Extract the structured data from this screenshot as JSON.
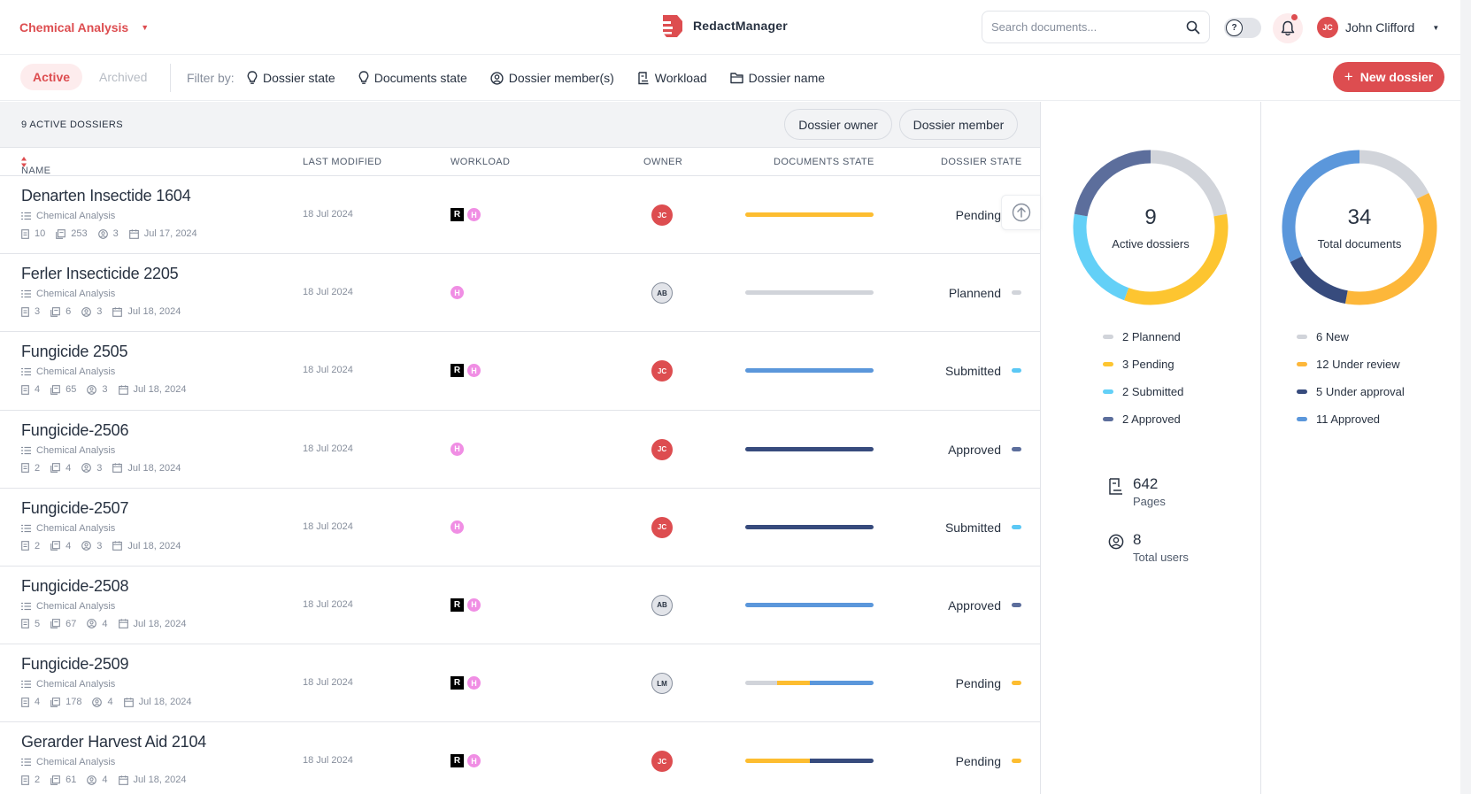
{
  "header": {
    "project": "Chemical Analysis",
    "app_name": "RedactManager",
    "search_placeholder": "Search documents...",
    "help_glyph": "?",
    "user": {
      "initials": "JC",
      "name": "John Clifford"
    }
  },
  "filterbar": {
    "tab_active": "Active",
    "tab_archived": "Archived",
    "filter_label": "Filter by:",
    "filters": [
      {
        "label": "Dossier state",
        "icon": "lightbulb-icon"
      },
      {
        "label": "Documents state",
        "icon": "lightbulb-icon"
      },
      {
        "label": "Dossier member(s)",
        "icon": "user-circle-icon"
      },
      {
        "label": "Workload",
        "icon": "workload-icon"
      },
      {
        "label": "Dossier name",
        "icon": "folder-icon"
      }
    ],
    "new_button": "New dossier"
  },
  "list": {
    "count_label": "9 ACTIVE DOSSIERS",
    "toggle_owner": "Dossier owner",
    "toggle_member": "Dossier member",
    "columns": {
      "name": "NAME",
      "modified": "LAST MODIFIED",
      "workload": "WORKLOAD",
      "owner": "OWNER",
      "docs_state": "DOCUMENTS STATE",
      "dossier_state": "DOSSIER STATE"
    }
  },
  "colors": {
    "accent": "#dd4d50",
    "new": "#d1d4da",
    "under_review": "#fdbd30",
    "under_approval": "#374b7d",
    "approved_docs": "#5b97db",
    "plannend": "#d1d4da",
    "pending": "#fdbd30",
    "submitted": "#5bc8f5",
    "approved": "#5c6e9c"
  },
  "dossiers": [
    {
      "name": "Denarten Insectide 1604",
      "template": "Chemical Analysis",
      "docs": "10",
      "pages": "253",
      "members": "3",
      "date": "Jul 17, 2024",
      "modified": "18 Jul 2024",
      "workload": [
        "R",
        "H"
      ],
      "owner": "JC",
      "owner_style": "jc",
      "state": "Pending",
      "state_color": "#fdbd30",
      "bar": [
        {
          "color": "#fdbd30",
          "pct": 100
        }
      ]
    },
    {
      "name": "Ferler Insecticide 2205",
      "template": "Chemical Analysis",
      "docs": "3",
      "pages": "6",
      "members": "3",
      "date": "Jul 18, 2024",
      "modified": "18 Jul 2024",
      "workload": [
        "H"
      ],
      "owner": "AB",
      "owner_style": "gray",
      "state": "Plannend",
      "state_color": "#d1d4da",
      "bar": [
        {
          "color": "#d1d4da",
          "pct": 100
        }
      ]
    },
    {
      "name": "Fungicide 2505",
      "template": "Chemical Analysis",
      "docs": "4",
      "pages": "65",
      "members": "3",
      "date": "Jul 18, 2024",
      "modified": "18 Jul 2024",
      "workload": [
        "R",
        "H"
      ],
      "owner": "JC",
      "owner_style": "jc",
      "state": "Submitted",
      "state_color": "#5bc8f5",
      "bar": [
        {
          "color": "#5b97db",
          "pct": 100
        }
      ]
    },
    {
      "name": "Fungicide-2506",
      "template": "Chemical Analysis",
      "docs": "2",
      "pages": "4",
      "members": "3",
      "date": "Jul 18, 2024",
      "modified": "18 Jul 2024",
      "workload": [
        "H"
      ],
      "owner": "JC",
      "owner_style": "jc",
      "state": "Approved",
      "state_color": "#5c6e9c",
      "bar": [
        {
          "color": "#374b7d",
          "pct": 100
        }
      ]
    },
    {
      "name": "Fungicide-2507",
      "template": "Chemical Analysis",
      "docs": "2",
      "pages": "4",
      "members": "3",
      "date": "Jul 18, 2024",
      "modified": "18 Jul 2024",
      "workload": [
        "H"
      ],
      "owner": "JC",
      "owner_style": "jc",
      "state": "Submitted",
      "state_color": "#5bc8f5",
      "bar": [
        {
          "color": "#374b7d",
          "pct": 100
        }
      ]
    },
    {
      "name": "Fungicide-2508",
      "template": "Chemical Analysis",
      "docs": "5",
      "pages": "67",
      "members": "4",
      "date": "Jul 18, 2024",
      "modified": "18 Jul 2024",
      "workload": [
        "R",
        "H"
      ],
      "owner": "AB",
      "owner_style": "gray",
      "state": "Approved",
      "state_color": "#5c6e9c",
      "bar": [
        {
          "color": "#5b97db",
          "pct": 100
        }
      ]
    },
    {
      "name": "Fungicide-2509",
      "template": "Chemical Analysis",
      "docs": "4",
      "pages": "178",
      "members": "4",
      "date": "Jul 18, 2024",
      "modified": "18 Jul 2024",
      "workload": [
        "R",
        "H"
      ],
      "owner": "LM",
      "owner_style": "gray",
      "state": "Pending",
      "state_color": "#fdbd30",
      "bar": [
        {
          "color": "#d1d4da",
          "pct": 25
        },
        {
          "color": "#fdbd30",
          "pct": 25
        },
        {
          "color": "#5b97db",
          "pct": 50
        }
      ]
    },
    {
      "name": "Gerarder Harvest Aid 2104",
      "template": "Chemical Analysis",
      "docs": "2",
      "pages": "61",
      "members": "4",
      "date": "Jul 18, 2024",
      "modified": "18 Jul 2024",
      "workload": [
        "R",
        "H"
      ],
      "owner": "JC",
      "owner_style": "jc",
      "state": "Pending",
      "state_color": "#fdbd30",
      "bar": [
        {
          "color": "#fdbd30",
          "pct": 50
        },
        {
          "color": "#374b7d",
          "pct": 50
        }
      ]
    }
  ],
  "stats": {
    "dossiers": {
      "total": "9",
      "label": "Active dossiers",
      "segments": [
        {
          "count": 2,
          "label": "2 Plannend",
          "color": "#d1d4da"
        },
        {
          "count": 3,
          "label": "3 Pending",
          "color": "#fdc530"
        },
        {
          "count": 2,
          "label": "2 Submitted",
          "color": "#63d0f7"
        },
        {
          "count": 2,
          "label": "2 Approved",
          "color": "#5c6e9c"
        }
      ]
    },
    "documents": {
      "total": "34",
      "label": "Total documents",
      "segments": [
        {
          "count": 6,
          "label": "6 New",
          "color": "#d1d4da"
        },
        {
          "count": 12,
          "label": "12 Under review",
          "color": "#fdb73a"
        },
        {
          "count": 5,
          "label": "5 Under approval",
          "color": "#374b7d"
        },
        {
          "count": 11,
          "label": "11 Approved",
          "color": "#5b97db"
        }
      ]
    },
    "pages": {
      "value": "642",
      "label": "Pages"
    },
    "users": {
      "value": "8",
      "label": "Total users"
    }
  }
}
